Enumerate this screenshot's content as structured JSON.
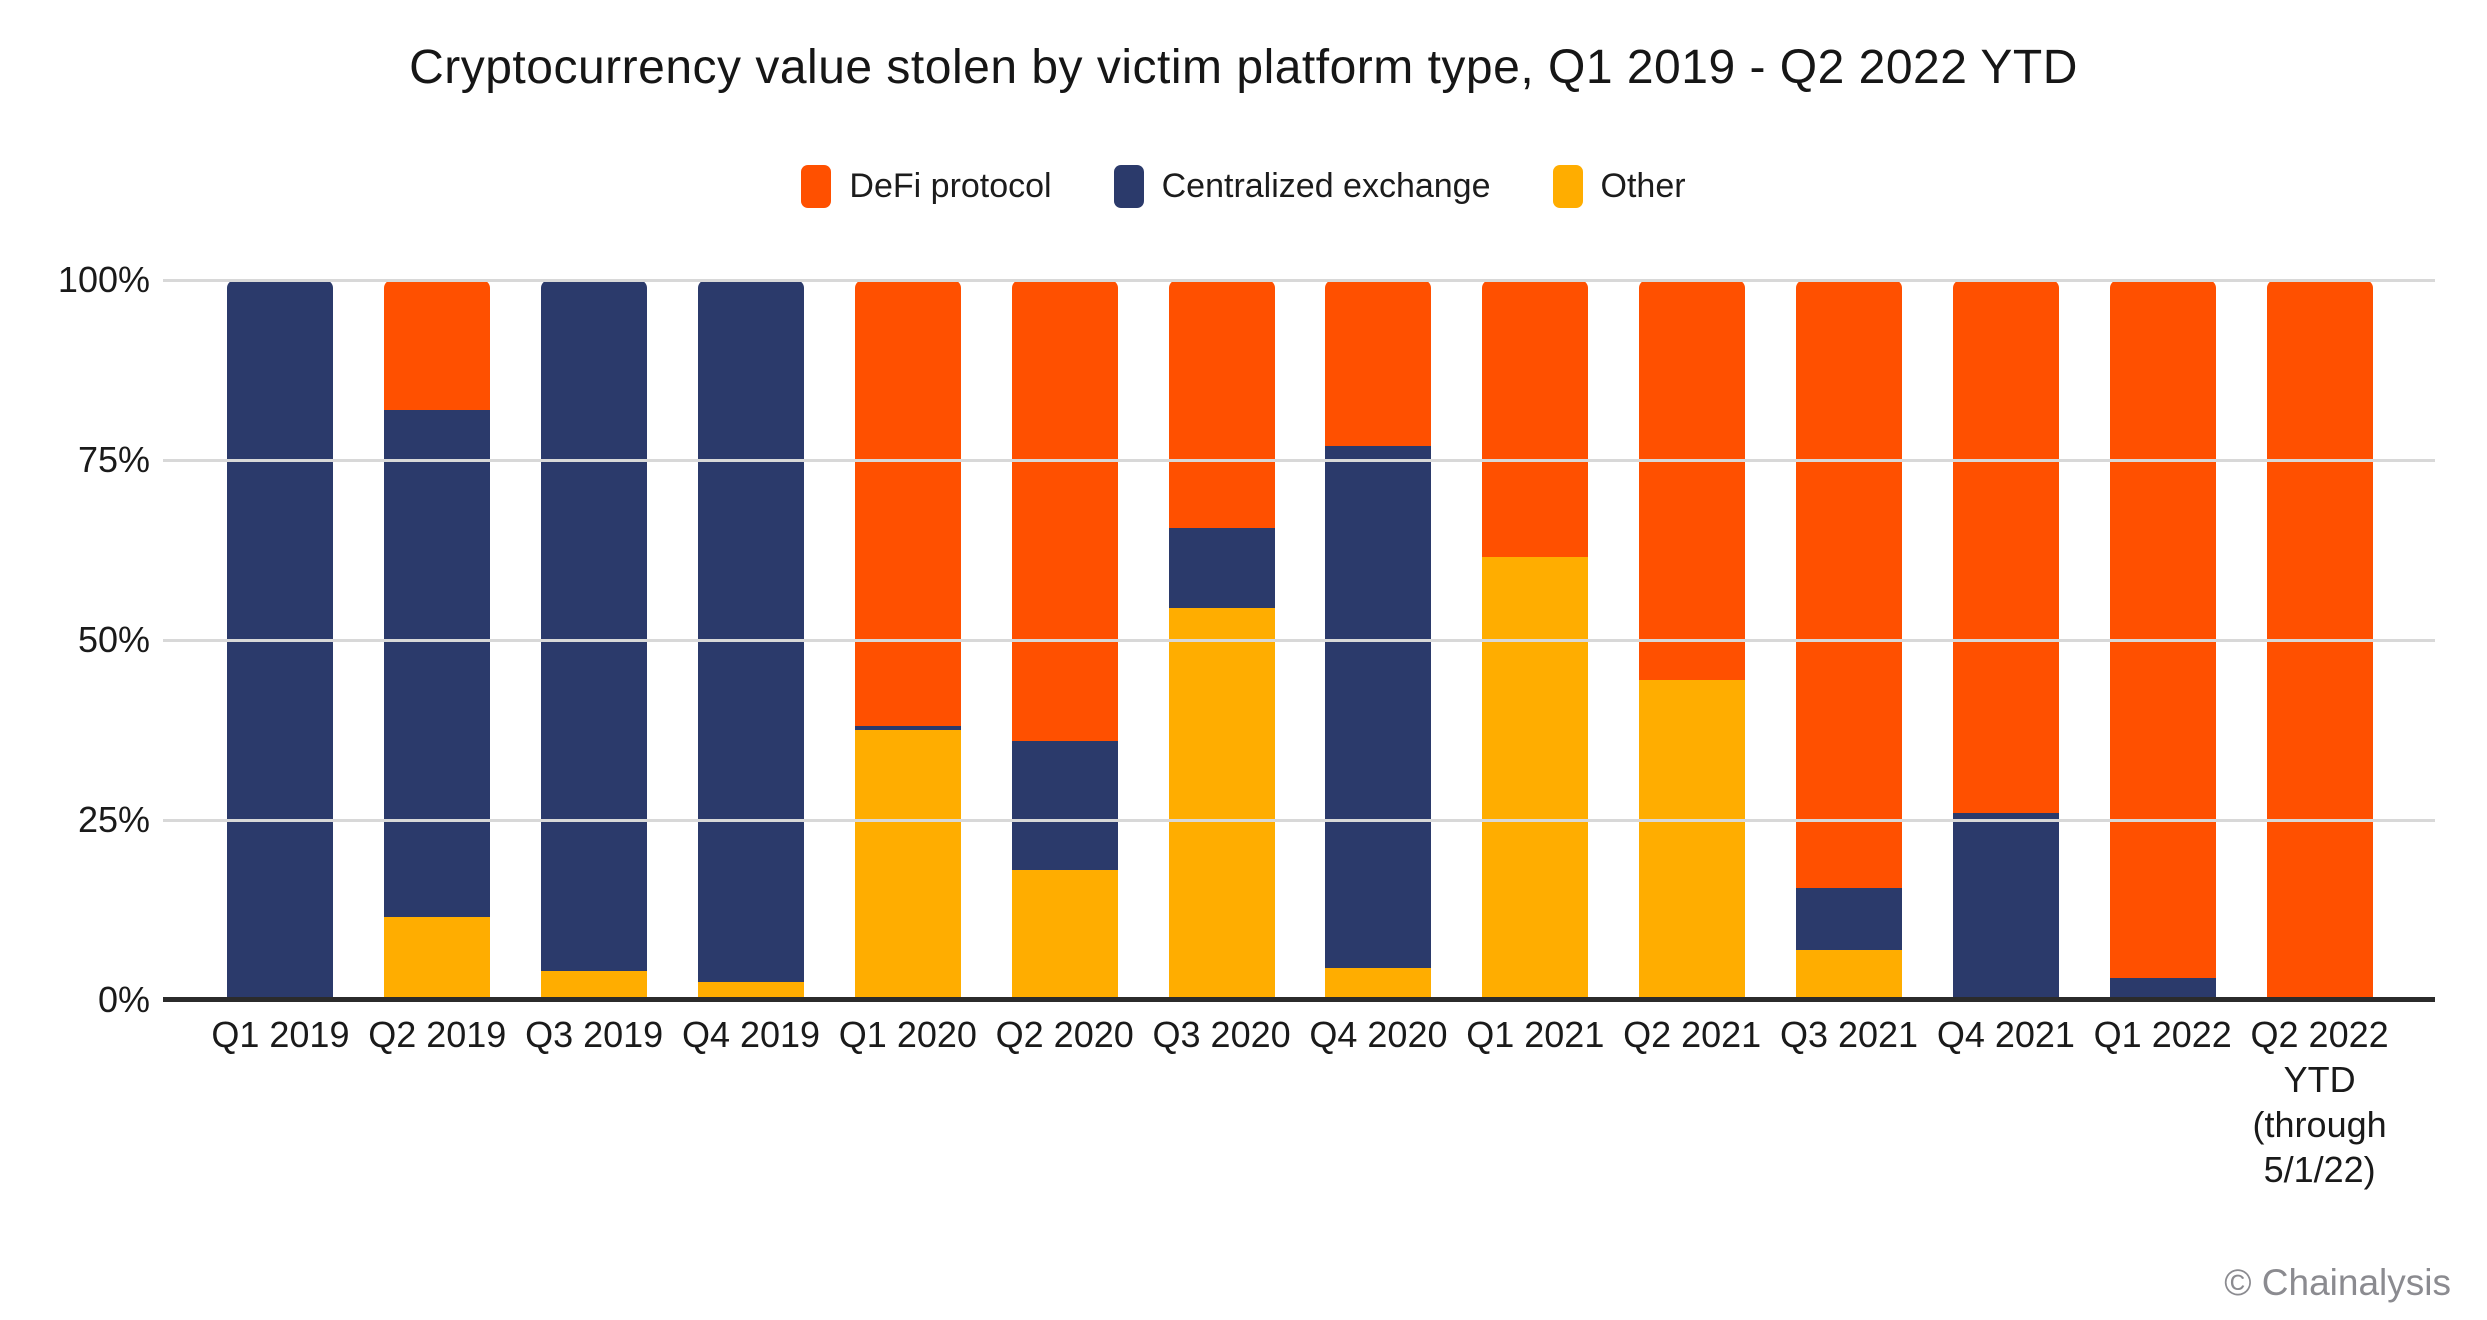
{
  "footer": {
    "copyright": "© Chainalysis"
  },
  "chart_data": {
    "type": "bar",
    "stacked": true,
    "title": "Cryptocurrency value stolen by victim platform type, Q1 2019 - Q2 2022 YTD",
    "xlabel": "",
    "ylabel": "",
    "ylim": [
      0,
      100
    ],
    "yticks": [
      "0%",
      "25%",
      "50%",
      "75%",
      "100%"
    ],
    "grid": "horizontal",
    "legend_position": "top",
    "units": "percent of total value stolen",
    "categories": [
      "Q1 2019",
      "Q2 2019",
      "Q3 2019",
      "Q4 2019",
      "Q1 2020",
      "Q2 2020",
      "Q3 2020",
      "Q4 2020",
      "Q1 2021",
      "Q2 2021",
      "Q3 2021",
      "Q4 2021",
      "Q1 2022",
      "Q2 2022\nYTD\n(through\n5/1/22)"
    ],
    "stack_order_bottom_to_top": [
      "Other",
      "Centralized exchange",
      "DeFi protocol"
    ],
    "series": [
      {
        "name": "DeFi protocol",
        "color": "#FF5000",
        "values": [
          0,
          18,
          0,
          0,
          62,
          64,
          34.5,
          23,
          38.5,
          55.5,
          84.5,
          74,
          97,
          100
        ]
      },
      {
        "name": "Centralized exchange",
        "color": "#2B3A6B",
        "values": [
          100,
          70.5,
          96,
          97.5,
          0.5,
          18,
          11,
          72.5,
          0,
          0,
          8.5,
          26,
          3,
          0
        ]
      },
      {
        "name": "Other",
        "color": "#FFAD00",
        "values": [
          0,
          11.5,
          4,
          2.5,
          37.5,
          18,
          54.5,
          4.5,
          61.5,
          44.5,
          7,
          0,
          0,
          0
        ]
      }
    ]
  }
}
